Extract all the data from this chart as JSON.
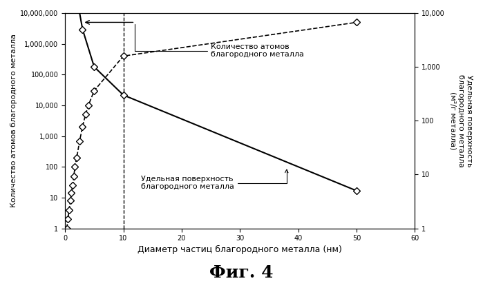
{
  "title": "Фиг. 4",
  "xlabel": "Диаметр частиц благородного металла (нм)",
  "ylabel_left": "Количество атомов благородного металла",
  "ylabel_right": "Удельная поверхность\nблагородного металла\n(м²/г металла)",
  "xlim": [
    0,
    60
  ],
  "ylim_left": [
    1,
    10000000
  ],
  "ylim_right": [
    1,
    10000
  ],
  "xticks": [
    0,
    10,
    20,
    30,
    40,
    50,
    60
  ],
  "left_yticks": [
    1,
    10,
    100,
    1000,
    10000,
    100000,
    1000000,
    10000000
  ],
  "left_yticklabels": [
    "1",
    "10",
    "100",
    "1,000",
    "10,000",
    "100,000",
    "1,000,000",
    "10,000,000"
  ],
  "right_yticks": [
    1,
    10,
    100,
    1000,
    10000
  ],
  "right_yticklabels": [
    "1",
    "10",
    "100",
    "1,000",
    "10,000"
  ],
  "atoms_x": [
    0.3,
    0.5,
    0.7,
    0.9,
    1.1,
    1.3,
    1.5,
    1.7,
    2.0,
    2.5,
    3.0,
    3.5,
    4.0,
    5.0,
    10.0,
    50.0
  ],
  "atoms_y": [
    1,
    2,
    4,
    8,
    14,
    25,
    50,
    100,
    200,
    700,
    2000,
    5000,
    10000,
    30000,
    400000,
    5000000
  ],
  "surface_x": [
    0.3,
    0.7,
    1.0,
    1.5,
    2.0,
    3.0,
    5.0,
    10.0,
    50.0
  ],
  "surface_y": [
    1000000,
    500000,
    200000,
    80000,
    20000,
    5000,
    1000,
    300,
    5
  ],
  "vline_x": 10,
  "annotation_atoms": "Количество атомов\nблагородного металла",
  "annotation_surface": "Удельная поверхность\nблагородного металла",
  "fig_label": "Фиг. 4"
}
